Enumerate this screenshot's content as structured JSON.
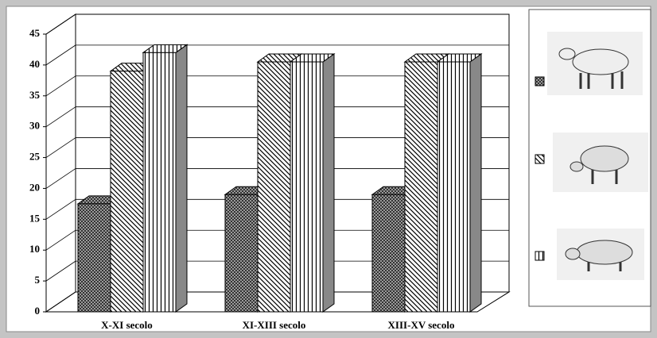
{
  "chart_data": {
    "type": "bar3d",
    "categories": [
      "X-XI secolo",
      "XI-XIII secolo",
      "XIII-XV secolo"
    ],
    "series": [
      {
        "color": "#555555",
        "values": [
          17.5,
          19,
          19
        ]
      },
      {
        "color": "#777777",
        "values": [
          39,
          40.5,
          40.5
        ]
      },
      {
        "color": "#888888",
        "values": [
          42,
          40.5,
          40.5
        ]
      }
    ],
    "ylim": [
      0,
      45
    ],
    "yticks": [
      0,
      5,
      10,
      15,
      20,
      25,
      30,
      35,
      40,
      45
    ],
    "grid": true
  }
}
